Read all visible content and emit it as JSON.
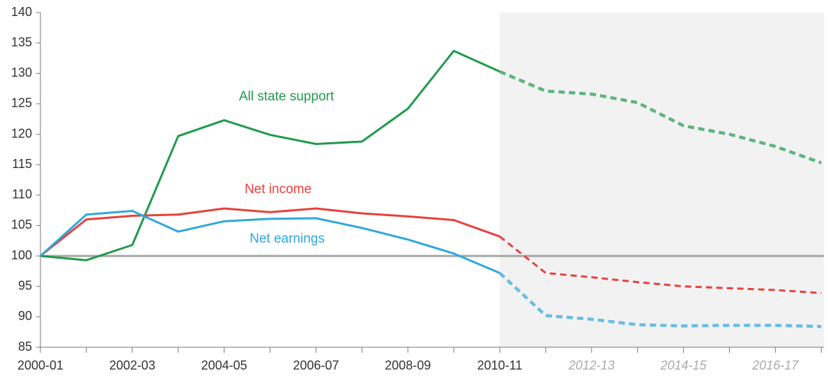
{
  "chart_data": {
    "type": "line",
    "categories": [
      "2000-01",
      null,
      "2002-03",
      null,
      "2004-05",
      null,
      "2006-07",
      null,
      "2008-09",
      null,
      "2010-11",
      null,
      "2012-13",
      null,
      "2014-15",
      null,
      "2016-17",
      null
    ],
    "forecast_start": "2010-11",
    "series": [
      {
        "name": "All state support",
        "color": "#1f9a4b",
        "values": [
          100,
          99.3,
          101.8,
          119.7,
          122.3,
          119.9,
          118.4,
          118.8,
          124.2,
          133.7,
          130.3,
          127.1,
          126.6,
          125.2,
          121.4,
          120.0,
          118.0,
          115.3
        ]
      },
      {
        "name": "Net income",
        "color": "#e8403a",
        "values": [
          100,
          106.0,
          106.6,
          106.8,
          107.8,
          107.2,
          107.8,
          107.0,
          106.5,
          105.9,
          103.2,
          97.2,
          96.5,
          95.7,
          95.0,
          94.7,
          94.4,
          93.9
        ]
      },
      {
        "name": "Net earnings",
        "color": "#2ea7dc",
        "values": [
          100,
          106.8,
          107.4,
          104.0,
          105.7,
          106.1,
          106.2,
          104.6,
          102.7,
          100.4,
          97.2,
          90.2,
          89.6,
          88.7,
          88.5,
          88.6,
          88.6,
          88.4
        ]
      }
    ],
    "reference_line": 100,
    "ylim": [
      85,
      140
    ],
    "yticks": [
      85,
      90,
      95,
      100,
      105,
      110,
      115,
      120,
      125,
      130,
      135,
      140
    ]
  }
}
